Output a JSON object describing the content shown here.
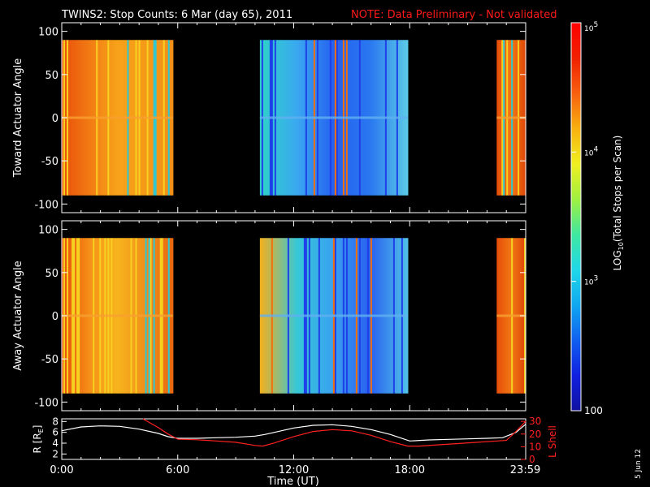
{
  "title": {
    "main": "TWINS2: Stop Counts:  6 Mar (day  65), 2011",
    "note": "NOTE: Data Preliminary - Not validated"
  },
  "footer_date": "5 Jun 12",
  "colors": {
    "background": "#000000",
    "axes": "#ffffff",
    "note": "#ff1a1a",
    "r_line": "#ffffff",
    "lshell_line": "#ff2020"
  },
  "chart_data": [
    {
      "type": "heatmap",
      "name": "toward-panel",
      "ylabel": "Toward Actuator Angle",
      "ylim": [
        -110,
        110
      ],
      "yticks": [
        "100",
        "50",
        "0",
        "-50",
        "-100"
      ],
      "ytick_values": [
        100,
        50,
        0,
        -50,
        -100
      ],
      "xlim": [
        0,
        24
      ],
      "data_y_range": [
        -90,
        90
      ],
      "segments": [
        {
          "start_hr": 0.0,
          "end_hr": 5.75,
          "level": "high",
          "colors": [
            "#e8500a",
            "#f27c14",
            "#f7a21a",
            "#f59a18",
            "#f0901a"
          ]
        },
        {
          "start_hr": 10.25,
          "end_hr": 17.9,
          "level": "low",
          "colors": [
            "#2fd2c8",
            "#3aa8f0",
            "#2560f0",
            "#2a78f0",
            "#5ac8e8"
          ]
        },
        {
          "start_hr": 22.5,
          "end_hr": 24.0,
          "level": "high",
          "colors": [
            "#e8500a",
            "#f07814",
            "#e04a0a"
          ]
        }
      ]
    },
    {
      "type": "heatmap",
      "name": "away-panel",
      "ylabel": "Away Actuator Angle",
      "ylim": [
        -110,
        110
      ],
      "yticks": [
        "100",
        "50",
        "0",
        "-50",
        "-100"
      ],
      "ytick_values": [
        100,
        50,
        0,
        -50,
        -100
      ],
      "xlim": [
        0,
        24
      ],
      "data_y_range": [
        -90,
        90
      ],
      "segments": [
        {
          "start_hr": 0.0,
          "end_hr": 5.75,
          "level": "high",
          "colors": [
            "#e8500a",
            "#f59018",
            "#f7b41e",
            "#f0901a",
            "#e86a10"
          ]
        },
        {
          "start_hr": 10.25,
          "end_hr": 17.9,
          "level": "low",
          "colors": [
            "#f0b020",
            "#36c8d8",
            "#3aa0f0",
            "#2860f0",
            "#50c0e8"
          ]
        },
        {
          "start_hr": 22.5,
          "end_hr": 24.0,
          "level": "high",
          "colors": [
            "#e8500a",
            "#f07814",
            "#e04a0a"
          ]
        }
      ]
    },
    {
      "type": "line",
      "name": "orbit-panel",
      "ylabel": "R [R",
      "ylabel_sub": "E",
      "ylabel_close": "]",
      "ylabel_right": "L Shell",
      "xlabel": "Time (UT)",
      "xticks": [
        "0:00",
        "6:00",
        "12:00",
        "18:00",
        "23:59"
      ],
      "xtick_values": [
        0,
        6,
        12,
        18,
        23.98
      ],
      "ylim_left": [
        1,
        8.5
      ],
      "yticks_left": [
        "8",
        "6",
        "4",
        "2"
      ],
      "ytick_values_left": [
        8,
        6,
        4,
        2
      ],
      "ylim_right": [
        0,
        32
      ],
      "yticks_right": [
        "30",
        "20",
        "10",
        "0"
      ],
      "ytick_values_right": [
        30,
        20,
        10,
        0
      ],
      "series": [
        {
          "axis": "left",
          "x": [
            0,
            1,
            2,
            3,
            4,
            5,
            5.5,
            6,
            7,
            8,
            9,
            10,
            10.5,
            11,
            12,
            13,
            14,
            15,
            16,
            17,
            18,
            19,
            20,
            21,
            22,
            22.8,
            23.5,
            24
          ],
          "values": [
            6.3,
            7.0,
            7.2,
            7.1,
            6.6,
            5.8,
            5.2,
            4.9,
            4.9,
            5.0,
            5.1,
            5.3,
            5.6,
            6.0,
            6.8,
            7.3,
            7.4,
            7.1,
            6.5,
            5.6,
            4.4,
            4.6,
            4.7,
            4.8,
            4.9,
            5.0,
            6.0,
            7.5
          ]
        },
        {
          "axis": "right",
          "x": [
            4.2,
            5.0,
            5.5,
            6.0,
            7.0,
            8.0,
            9.0,
            10.0,
            10.4,
            11.0,
            12.0,
            13.0,
            14.0,
            15.0,
            16.0,
            17.0,
            17.9,
            18.5,
            19.5,
            20.5,
            21.5,
            22.5,
            23.0,
            23.5,
            24.0
          ],
          "values": [
            32,
            25,
            20,
            16,
            15.5,
            14.5,
            13.5,
            11,
            10.5,
            13,
            18,
            22,
            23.5,
            22.5,
            19,
            14,
            10.5,
            10.5,
            11.5,
            12.5,
            13.5,
            14.5,
            15,
            22,
            30
          ]
        }
      ]
    },
    {
      "type": "colorbar",
      "name": "colorbar",
      "label_prefix": "LOG",
      "label_sub": "10",
      "label_suffix": "(Total Stops per Scan)",
      "scale": "log",
      "range": [
        100,
        100000
      ],
      "tick_values": [
        100000,
        10000,
        1000,
        100
      ],
      "ticks": [
        {
          "value": 100000,
          "base": "10",
          "exp": "5"
        },
        {
          "value": 10000,
          "base": "10",
          "exp": "4"
        },
        {
          "value": 1000,
          "base": "10",
          "exp": "3"
        },
        {
          "value": 100,
          "base": "100",
          "exp": ""
        }
      ],
      "gradient": [
        "#1010a0",
        "#1020e0",
        "#1060f0",
        "#10a8f0",
        "#20d8e8",
        "#40e8a0",
        "#a0f040",
        "#f0f020",
        "#f8b010",
        "#f86010",
        "#f02000",
        "#ff0000"
      ]
    }
  ]
}
